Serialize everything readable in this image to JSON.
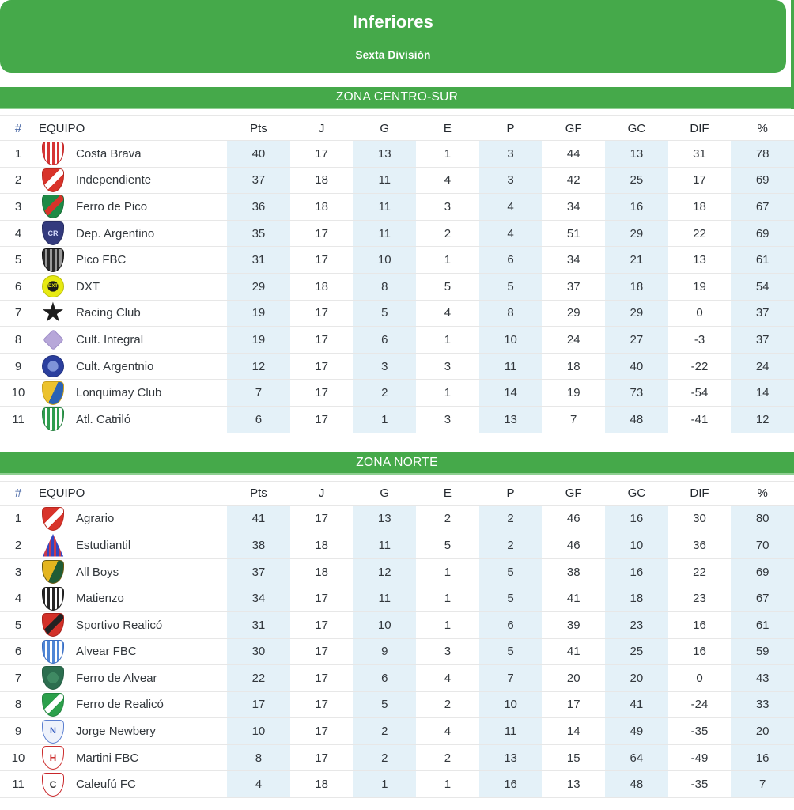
{
  "header": {
    "title": "Inferiores",
    "subtitle": "Sexta División"
  },
  "columns": [
    "#",
    "EQUIPO",
    "Pts",
    "J",
    "G",
    "E",
    "P",
    "GF",
    "GC",
    "DIF",
    "%"
  ],
  "colors": {
    "accent_green": "#45a94a",
    "row_highlight_blue": "#e4f1f8",
    "header_hash_blue": "#3b5c9e",
    "text": "#32373c"
  },
  "zones": [
    {
      "name": "ZONA CENTRO-SUR",
      "rows": [
        {
          "pos": "1",
          "team": "Costa Brava",
          "badge": {
            "shape": "shield",
            "pattern": "stripes",
            "c1": "#d63434",
            "c2": "#ffffff",
            "border": "#c02828"
          },
          "stats": [
            "40",
            "17",
            "13",
            "1",
            "3",
            "44",
            "13",
            "31",
            "78"
          ]
        },
        {
          "pos": "2",
          "team": "Independiente",
          "badge": {
            "shape": "shield",
            "pattern": "diag",
            "c1": "#d8332a",
            "c2": "#ffffff",
            "border": "#b7271f"
          },
          "stats": [
            "37",
            "18",
            "11",
            "4",
            "3",
            "42",
            "25",
            "17",
            "69"
          ]
        },
        {
          "pos": "3",
          "team": "Ferro de Pico",
          "badge": {
            "shape": "shield",
            "pattern": "diag",
            "c1": "#1e8a46",
            "c2": "#d8332a",
            "border": "#176e37"
          },
          "stats": [
            "36",
            "18",
            "11",
            "3",
            "4",
            "34",
            "16",
            "18",
            "67"
          ]
        },
        {
          "pos": "4",
          "team": "Dep. Argentino",
          "badge": {
            "shape": "shield",
            "pattern": "solid",
            "c1": "#333a7d",
            "c2": "#333a7d",
            "border": "#272d63",
            "text": "CR",
            "tc": "#d9ddff",
            "fs": "9px"
          },
          "stats": [
            "35",
            "17",
            "11",
            "2",
            "4",
            "51",
            "29",
            "22",
            "69"
          ]
        },
        {
          "pos": "5",
          "team": "Pico FBC",
          "badge": {
            "shape": "shield",
            "pattern": "stripes",
            "c1": "#2a2a2a",
            "c2": "#9a9a9a",
            "border": "#141414"
          },
          "stats": [
            "31",
            "17",
            "10",
            "1",
            "6",
            "34",
            "21",
            "13",
            "61"
          ]
        },
        {
          "pos": "6",
          "team": "DXT",
          "badge": {
            "shape": "circle",
            "pattern": "ring",
            "c1": "#e7ea12",
            "c2": "#1a1a1a",
            "border": "#b9bc0e",
            "text": "DXT",
            "tc": "#e7ea12",
            "fs": "6px"
          },
          "stats": [
            "29",
            "18",
            "8",
            "5",
            "5",
            "37",
            "18",
            "19",
            "54"
          ]
        },
        {
          "pos": "7",
          "team": "Racing Club",
          "badge": {
            "shape": "star",
            "pattern": "solid",
            "c1": "#1b1b1b",
            "c2": "#1b1b1b",
            "border": "#1b1b1b",
            "text": "★"
          },
          "stats": [
            "19",
            "17",
            "5",
            "4",
            "8",
            "29",
            "29",
            "0",
            "37"
          ]
        },
        {
          "pos": "8",
          "team": "Cult. Integral",
          "badge": {
            "shape": "diamond",
            "pattern": "solid",
            "c1": "#b7a7d9",
            "c2": "#b7a7d9",
            "border": "#9d8cc6"
          },
          "stats": [
            "19",
            "17",
            "6",
            "1",
            "10",
            "24",
            "27",
            "-3",
            "37"
          ]
        },
        {
          "pos": "9",
          "team": "Cult. Argentnio",
          "badge": {
            "shape": "circle",
            "pattern": "ring",
            "c1": "#2b3f9e",
            "c2": "#7e93d8",
            "border": "#22327f"
          },
          "stats": [
            "12",
            "17",
            "3",
            "3",
            "11",
            "18",
            "40",
            "-22",
            "24"
          ]
        },
        {
          "pos": "10",
          "team": "Lonquimay Club",
          "badge": {
            "shape": "shield",
            "pattern": "half",
            "c1": "#ecc22d",
            "c2": "#2b62b5",
            "border": "#c79f1d"
          },
          "stats": [
            "7",
            "17",
            "2",
            "1",
            "14",
            "19",
            "73",
            "-54",
            "14"
          ]
        },
        {
          "pos": "11",
          "team": "Atl. Catriló",
          "badge": {
            "shape": "shield",
            "pattern": "stripes",
            "c1": "#2e9e4f",
            "c2": "#ffffff",
            "border": "#26813f"
          },
          "stats": [
            "6",
            "17",
            "1",
            "3",
            "13",
            "7",
            "48",
            "-41",
            "12"
          ]
        }
      ]
    },
    {
      "name": "ZONA NORTE",
      "rows": [
        {
          "pos": "1",
          "team": "Agrario",
          "badge": {
            "shape": "shield",
            "pattern": "diag",
            "c1": "#d8332a",
            "c2": "#ffffff",
            "border": "#b7271f"
          },
          "stats": [
            "41",
            "17",
            "13",
            "2",
            "2",
            "46",
            "16",
            "30",
            "80"
          ]
        },
        {
          "pos": "2",
          "team": "Estudiantil",
          "badge": {
            "shape": "tri",
            "pattern": "stripes",
            "c1": "#3346c2",
            "c2": "#c63a4e",
            "border": "#3346c2"
          },
          "stats": [
            "38",
            "18",
            "11",
            "5",
            "2",
            "46",
            "10",
            "36",
            "70"
          ]
        },
        {
          "pos": "3",
          "team": "All Boys",
          "badge": {
            "shape": "shield",
            "pattern": "half",
            "c1": "#e4b51f",
            "c2": "#1f5c35",
            "border": "#6b5a10"
          },
          "stats": [
            "37",
            "18",
            "12",
            "1",
            "5",
            "38",
            "16",
            "22",
            "69"
          ]
        },
        {
          "pos": "4",
          "team": "Matienzo",
          "badge": {
            "shape": "shield",
            "pattern": "stripes",
            "c1": "#262626",
            "c2": "#ffffff",
            "border": "#1a1a1a"
          },
          "stats": [
            "34",
            "17",
            "11",
            "1",
            "5",
            "41",
            "18",
            "23",
            "67"
          ]
        },
        {
          "pos": "5",
          "team": "Sportivo Realicó",
          "badge": {
            "shape": "shield",
            "pattern": "diag",
            "c1": "#d23028",
            "c2": "#222222",
            "border": "#a8201a"
          },
          "stats": [
            "31",
            "17",
            "10",
            "1",
            "6",
            "39",
            "23",
            "16",
            "61"
          ]
        },
        {
          "pos": "6",
          "team": "Alvear FBC",
          "badge": {
            "shape": "shield",
            "pattern": "stripes",
            "c1": "#4f86d6",
            "c2": "#ffffff",
            "border": "#3a6cc0"
          },
          "stats": [
            "30",
            "17",
            "9",
            "3",
            "5",
            "41",
            "25",
            "16",
            "59"
          ]
        },
        {
          "pos": "7",
          "team": "Ferro de Alvear",
          "badge": {
            "shape": "shield",
            "pattern": "ring",
            "c1": "#2c6e4f",
            "c2": "#3f8a63",
            "border": "#235c41"
          },
          "stats": [
            "22",
            "17",
            "6",
            "4",
            "7",
            "20",
            "20",
            "0",
            "43"
          ]
        },
        {
          "pos": "8",
          "team": "Ferro de Realicó",
          "badge": {
            "shape": "shield",
            "pattern": "diag",
            "c1": "#2ca04b",
            "c2": "#ffffff",
            "border": "#238540"
          },
          "stats": [
            "17",
            "17",
            "5",
            "2",
            "10",
            "17",
            "41",
            "-24",
            "33"
          ]
        },
        {
          "pos": "9",
          "team": "Jorge Newbery",
          "badge": {
            "shape": "shield",
            "pattern": "solid",
            "c1": "#eef2fb",
            "c2": "#eef2fb",
            "border": "#5b7fd0",
            "text": "N",
            "tc": "#3a5fc0",
            "fs": "11px"
          },
          "stats": [
            "10",
            "17",
            "2",
            "4",
            "11",
            "14",
            "49",
            "-35",
            "20"
          ]
        },
        {
          "pos": "10",
          "team": "Martini FBC",
          "badge": {
            "shape": "shield",
            "pattern": "solid",
            "c1": "#ffffff",
            "c2": "#ffffff",
            "border": "#cc2f2f",
            "text": "H",
            "tc": "#cc2f2f",
            "fs": "12px"
          },
          "stats": [
            "8",
            "17",
            "2",
            "2",
            "13",
            "15",
            "64",
            "-49",
            "16"
          ]
        },
        {
          "pos": "11",
          "team": "Caleufú FC",
          "badge": {
            "shape": "shield",
            "pattern": "solid",
            "c1": "#ffffff",
            "c2": "#ffffff",
            "border": "#c8262a",
            "text": "C",
            "tc": "#333333",
            "fs": "12px"
          },
          "stats": [
            "4",
            "18",
            "1",
            "1",
            "16",
            "13",
            "48",
            "-35",
            "7"
          ]
        }
      ]
    }
  ]
}
